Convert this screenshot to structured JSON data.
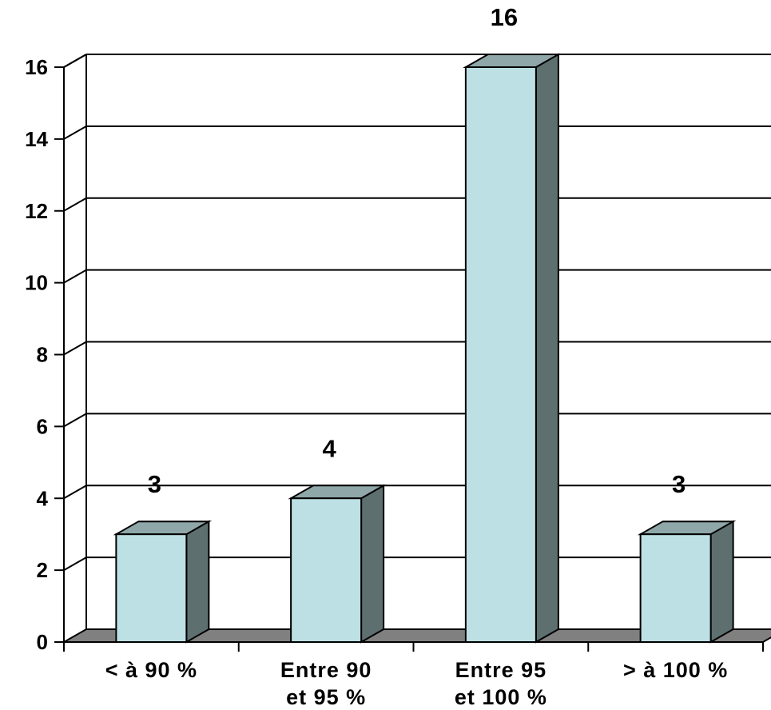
{
  "chart_data": {
    "type": "bar",
    "categories": [
      [
        "< à 90 %"
      ],
      [
        "Entre 90",
        "et 95 %"
      ],
      [
        "Entre 95",
        "et 100 %"
      ],
      [
        "> à 100 %"
      ]
    ],
    "values": [
      3,
      4,
      16,
      3
    ],
    "data_labels": [
      "3",
      "4",
      "16",
      "3"
    ],
    "y_ticks": [
      "0",
      "2",
      "4",
      "6",
      "8",
      "10",
      "12",
      "14",
      "16"
    ],
    "ylim": [
      0,
      16
    ],
    "title": "",
    "xlabel": "",
    "ylabel": "",
    "grid": true,
    "legend": "none",
    "style": "3d-column",
    "colors": {
      "bar_front": "#bde0e4",
      "bar_top": "#8fa7a9",
      "bar_side": "#5e6f70",
      "floor": "#808080",
      "gridline": "#000000"
    }
  }
}
